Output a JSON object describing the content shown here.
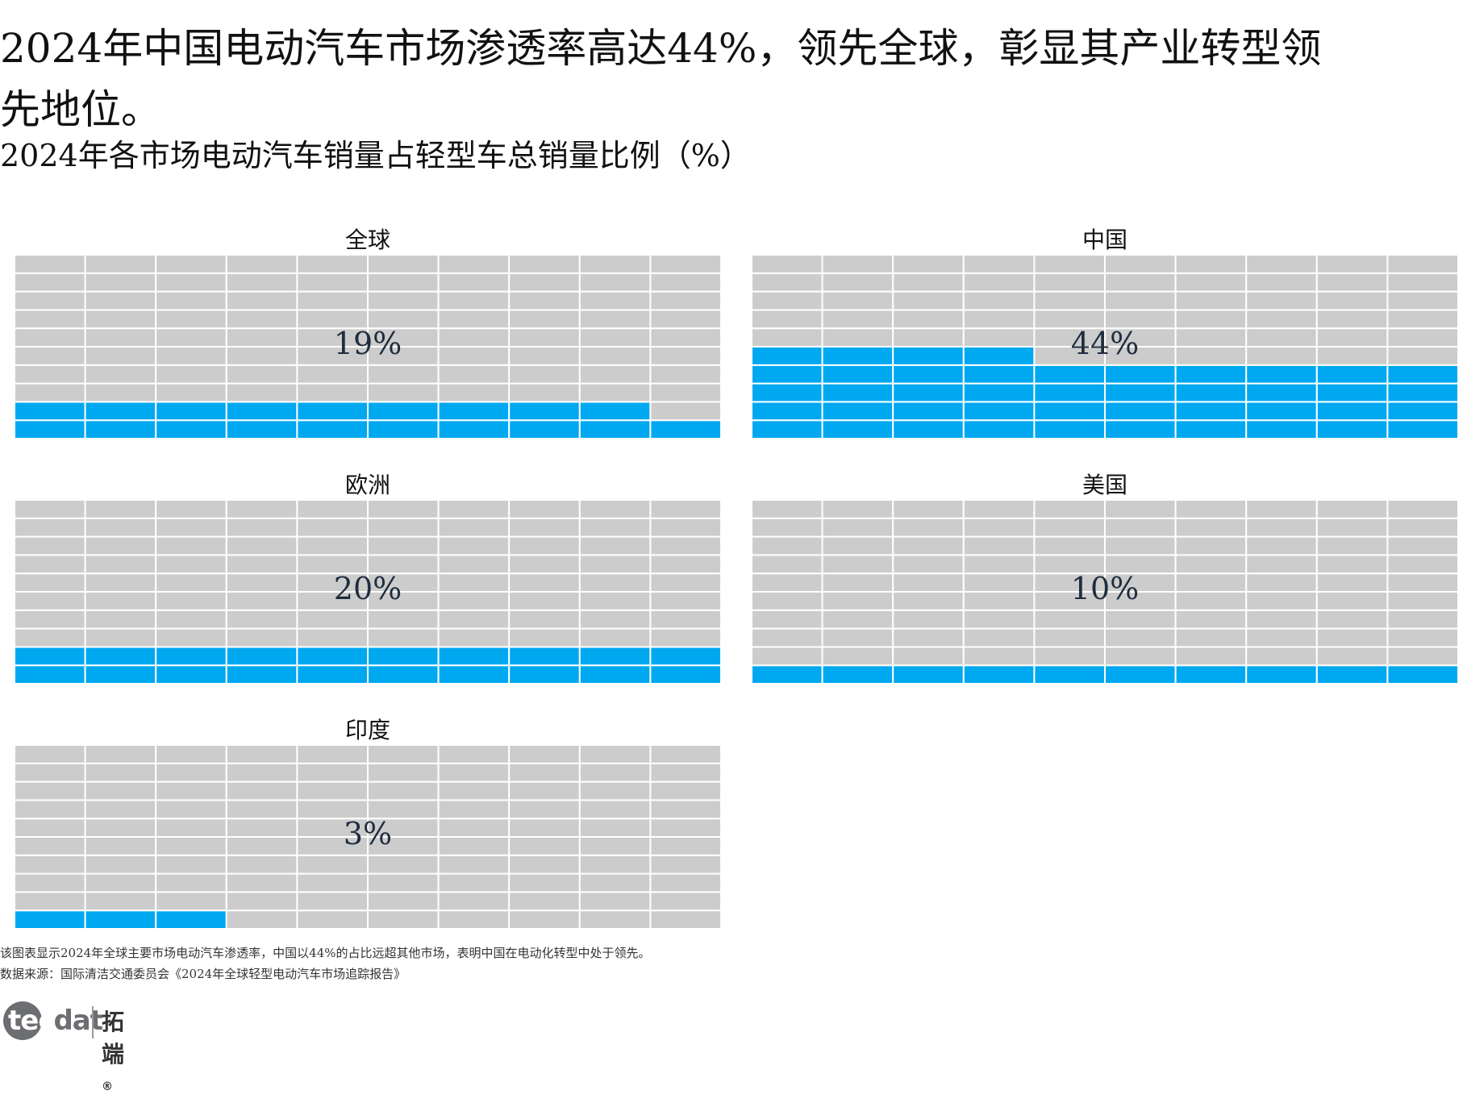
{
  "headline": "2024年中国电动汽车市场渗透率高达44%，领先全球，彰显其产业转型领先地位。",
  "subtitle": "2024年各市场电动汽车销量占轻型车总销量比例（%）",
  "chart_data": {
    "type": "waffle",
    "grid": {
      "rows": 10,
      "cols": 10
    },
    "colors": {
      "filled": "#00a8f0",
      "empty": "#cccccc",
      "separator": "#ffffff"
    },
    "panels": [
      {
        "name": "全球",
        "value": 19,
        "label": "19%"
      },
      {
        "name": "中国",
        "value": 44,
        "label": "44%"
      },
      {
        "name": "欧洲",
        "value": 20,
        "label": "20%"
      },
      {
        "name": "美国",
        "value": 10,
        "label": "10%"
      },
      {
        "name": "印度",
        "value": 3,
        "label": "3%"
      }
    ]
  },
  "notes": {
    "description": "该图表显示2024年全球主要市场电动汽车渗透率，中国以44%的占比远超其他市场，表明中国在电动化转型中处于领先。",
    "source": "数据来源：国际清洁交通委员会《2024年全球轻型电动汽车市场追踪报告》"
  },
  "logo": {
    "latin_a": "tec",
    "latin_b": "dat",
    "chinese": "拓端",
    "mark": "®"
  }
}
